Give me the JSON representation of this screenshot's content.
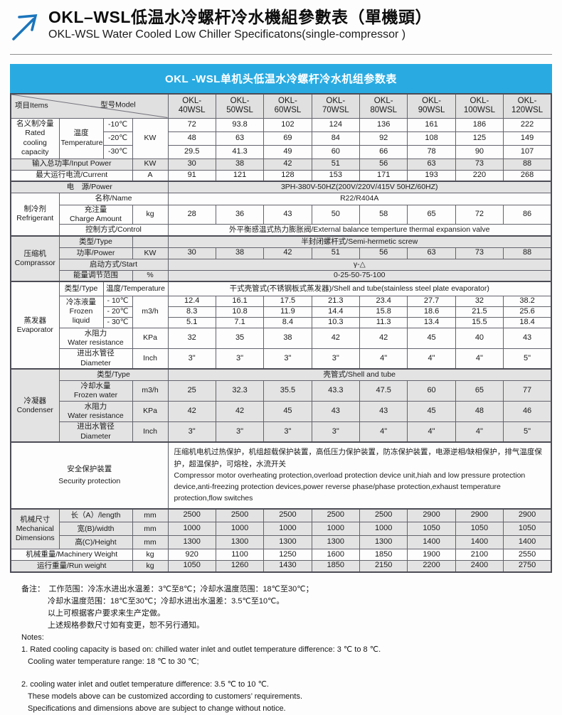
{
  "document": {
    "title_zh": "OKL–WSL低温水冷螺杆冷水機組參數表（單機頭）",
    "title_en": "OKL-WSL Water Cooled Low Chiller Specificatons(single-compressor )",
    "banner": "OKL -WSL单机头低温水冷螺杆冷水机组参数表"
  },
  "colors": {
    "banner_bg": "#29abe2",
    "arrow_blue": "#1b75bc",
    "shaded_row": "#e3e3e3",
    "header_row": "#e0e0e0",
    "border": "#63636e"
  },
  "header": {
    "items_label": "项目Items",
    "model_label": "型号Model",
    "model_prefix": "OKL-",
    "models": [
      "40WSL",
      "50WSL",
      "60WSL",
      "70WSL",
      "80WSL",
      "90WSL",
      "100WSL",
      "120WSL"
    ]
  },
  "capacity": {
    "group_zh": "名义制冷量",
    "group_en": "Rated cooling capacity",
    "temp_zh": "温度",
    "temp_en": "Temperature",
    "unit": "KW",
    "rows": [
      {
        "label": "-10℃",
        "values": [
          72,
          93.8,
          102,
          124,
          136,
          161,
          186,
          222
        ]
      },
      {
        "label": "-20℃",
        "values": [
          48,
          63,
          69,
          84,
          92,
          108,
          125,
          149
        ]
      },
      {
        "label": "-30℃",
        "values": [
          29.5,
          41.3,
          49,
          60,
          66,
          78,
          90,
          107
        ]
      }
    ]
  },
  "input_power": {
    "label": "输入总功率/Input Power",
    "unit": "KW",
    "values": [
      30,
      38,
      42,
      51,
      56,
      63,
      73,
      88
    ]
  },
  "current": {
    "label": "最大运行电流/Current",
    "unit": "A",
    "values": [
      91,
      121,
      128,
      153,
      171,
      193,
      220,
      268
    ]
  },
  "power_supply": {
    "label": "电　源/Power",
    "value": "3PH-380V-50HZ(200V/220V/415V  50HZ/60HZ)"
  },
  "refrigerant": {
    "group_zh": "制冷剂",
    "group_en": "Refrigerant",
    "name": {
      "label": "名称/Name",
      "value": "R22/R404A"
    },
    "charge": {
      "label_zh": "充注量",
      "label_en": "Charge Amount",
      "unit": "kg",
      "values": [
        28,
        36,
        43,
        50,
        58,
        65,
        72,
        86
      ]
    },
    "control": {
      "label": "控制方式/Control",
      "value": "外平衡感温式热力膨胀阀/External balance temperture thermal expansion valve"
    }
  },
  "compressor": {
    "group_zh": "压缩机",
    "group_en": "Comprassor",
    "type": {
      "label": "类型/Type",
      "value": "半封闭螺杆式/Semi-hermetic screw"
    },
    "power": {
      "label": "功率/Power",
      "unit": "KW",
      "values": [
        30,
        38,
        42,
        51,
        56,
        63,
        73,
        88
      ]
    },
    "start": {
      "label": "启动方式/Start",
      "value": "γ-△"
    },
    "energy": {
      "label": "能量调节范围",
      "unit": "%",
      "value": "0-25-50-75-100"
    }
  },
  "evaporator": {
    "group_zh": "蒸发器",
    "group_en": "Evaporator",
    "type": {
      "label": "类型/Type",
      "temp_label": "温度/Temperature",
      "value": "干式壳管式(不锈钢板式蒸发器)/Shell and tube(stainless steel plate evaporator)"
    },
    "frozen_liquid": {
      "label_zh": "冷冻液量",
      "label_en": "Frozen liquid",
      "unit": "m3/h",
      "rows": [
        {
          "label": "- 10℃",
          "values": [
            12.4,
            16.1,
            17.5,
            21.3,
            23.4,
            27.7,
            32,
            38.2
          ]
        },
        {
          "label": "- 20℃",
          "values": [
            8.3,
            10.8,
            11.9,
            14.4,
            15.8,
            18.6,
            21.5,
            25.6
          ]
        },
        {
          "label": "- 30℃",
          "values": [
            5.1,
            7.1,
            8.4,
            10.3,
            11.3,
            13.4,
            15.5,
            18.4
          ]
        }
      ]
    },
    "water_resistance": {
      "label_zh": "水阻力",
      "label_en": "Water resistance",
      "unit": "KPa",
      "values": [
        32,
        35,
        38,
        42,
        42,
        45,
        40,
        43
      ]
    },
    "diameter": {
      "label_zh": "进出水管径",
      "label_en": "Diameter",
      "unit": "Inch",
      "values": [
        "3\"",
        "3\"",
        "3\"",
        "3\"",
        "4\"",
        "4\"",
        "4\"",
        "5\""
      ]
    }
  },
  "condenser": {
    "group_zh": "冷凝器",
    "group_en": "Condenser",
    "type": {
      "label": "类型/Type",
      "value": "壳管式/Shell and tube"
    },
    "cooling_water": {
      "label_zh": "冷却水量",
      "label_en": "Frozen water",
      "unit": "m3/h",
      "values": [
        25,
        32.3,
        35.5,
        43.3,
        47.5,
        60,
        65,
        77
      ]
    },
    "water_resistance": {
      "label_zh": "水阻力",
      "label_en": "Water resistance",
      "unit": "KPa",
      "values": [
        42,
        42,
        45,
        43,
        43,
        45,
        48,
        46
      ]
    },
    "diameter": {
      "label_zh": "进出水管径",
      "label_en": "Diameter",
      "unit": "Inch",
      "values": [
        "3\"",
        "3\"",
        "3\"",
        "3\"",
        "4\"",
        "4\"",
        "4\"",
        "5\""
      ]
    }
  },
  "security": {
    "label_zh": "安全保护装置",
    "label_en": "Security protection",
    "text_zh": "压缩机电机过热保护，机组超载保护装置，高低压力保护装置，防冻保护装置，电源逆相/缺相保护，排气温度保护，超温保护，可熔栓，水流开关",
    "text_en": "Compressor motor overheating protection,overload protection device unit,hiah and low pressure protection device,anti-freezing protection devices,power reverse phase/phase protection,exhaust temperature protection,flow switches"
  },
  "dimensions": {
    "group_zh": "机械尺寸",
    "group_en": "Mechanical Dimensions",
    "length": {
      "label": "长（A）/length",
      "unit": "mm",
      "values": [
        2500,
        2500,
        2500,
        2500,
        2500,
        2900,
        2900,
        2900
      ]
    },
    "width": {
      "label": "宽(B)/width",
      "unit": "mm",
      "values": [
        1000,
        1000,
        1000,
        1000,
        1000,
        1050,
        1050,
        1050
      ]
    },
    "height": {
      "label": "高(C)/Height",
      "unit": "mm",
      "values": [
        1300,
        1300,
        1300,
        1300,
        1300,
        1400,
        1400,
        1400
      ]
    }
  },
  "machinery_weight": {
    "label": "机械重量/Machinery Weight",
    "unit": "kg",
    "values": [
      920,
      1100,
      1250,
      1600,
      1850,
      1900,
      2100,
      2550
    ]
  },
  "run_weight": {
    "label": "运行重量/Run weight",
    "unit": "kg",
    "values": [
      1050,
      1260,
      1430,
      1850,
      2150,
      2200,
      2400,
      2750
    ]
  },
  "notes": {
    "zh": [
      "备注：　工作范围：冷冻水进出水温差：3℃至8℃；冷却水温度范围：18℃至30℃；",
      "冷却水温度范围：18℃至30℃；冷却水进出水温差：3.5℃至10℃。",
      "以上可根据客户要求来生产定做。",
      "上述规格参数尺寸如有变更，恕不另行通知。"
    ],
    "en": [
      "Notes:",
      "1. Rated cooling capacity is based on: chilled water inlet and outlet temperature  difference: 3 ℃ to 8 ℃.",
      "Cooling water temperature  range: 18 ℃ to 30 ℃;",
      "2. cooling water inlet and outlet temperature  difference: 3.5 ℃ to 10 ℃.",
      "These models above can be customized according to customers’  requirements.",
      "Specifications and dimensions above are subject to change without notice."
    ]
  }
}
